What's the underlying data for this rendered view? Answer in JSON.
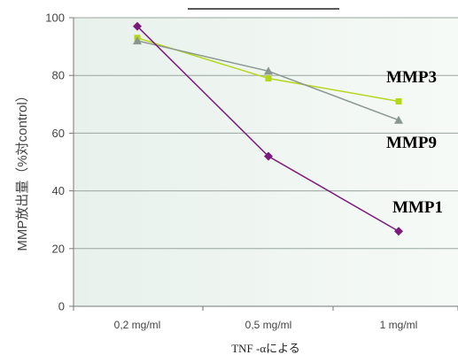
{
  "chart_data": {
    "type": "line",
    "title": "",
    "xlabel": "TNF -αによる",
    "ylabel": "MMP放出量（%対control）",
    "categories": [
      "0,2 mg/ml",
      "0,5 mg/ml",
      "1 mg/ml"
    ],
    "ylim": [
      0,
      100
    ],
    "yticks": [
      0,
      20,
      40,
      60,
      80,
      100
    ],
    "grid": true,
    "series": [
      {
        "name": "MMP3",
        "values": [
          93,
          79,
          71
        ],
        "color": "#b5d71b",
        "marker": "square"
      },
      {
        "name": "MMP9",
        "values": [
          92,
          81.5,
          64.5
        ],
        "color": "#8a9690",
        "marker": "triangle"
      },
      {
        "name": "MMP1",
        "values": [
          97,
          52,
          26
        ],
        "color": "#7b1b7b",
        "marker": "diamond"
      }
    ]
  }
}
